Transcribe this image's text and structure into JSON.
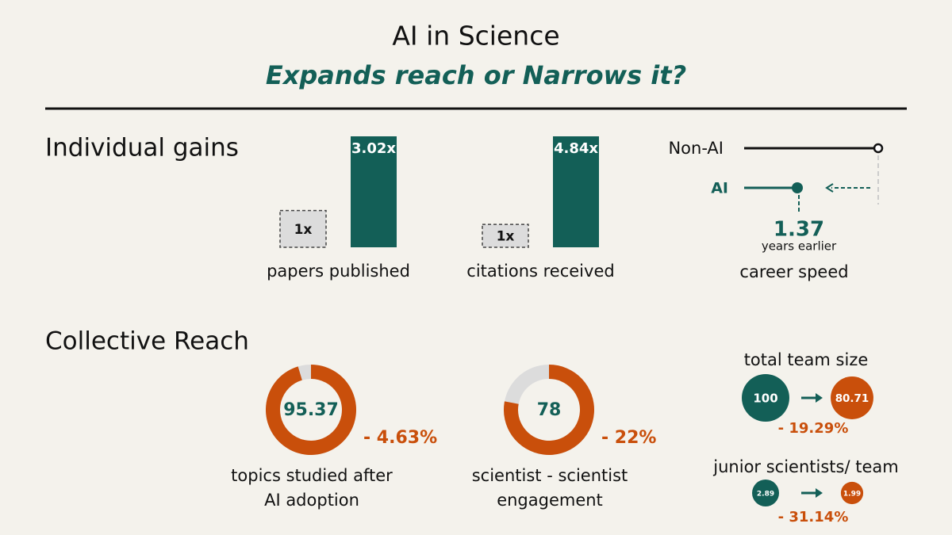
{
  "title": "AI in Science",
  "subtitle": "Expands reach or Narrows it?",
  "individual": {
    "heading": "Individual gains",
    "bars": [
      {
        "label": "papers published",
        "values": [
          1,
          3.02
        ],
        "value_labels": [
          "1x",
          "3.02x"
        ]
      },
      {
        "label": "citations received",
        "values": [
          1,
          4.84
        ],
        "value_labels": [
          "1x",
          "4.84x"
        ]
      }
    ],
    "career": {
      "label": "career speed",
      "series": [
        "Non-AI",
        "AI"
      ],
      "value": 1.37,
      "note": "years earlier"
    }
  },
  "collective": {
    "heading": "Collective Reach",
    "donuts": [
      {
        "value": 95.37,
        "change": "- 4.63%",
        "label": [
          "topics studied after",
          "AI adoption"
        ]
      },
      {
        "value": 78,
        "change": "- 22%",
        "label": [
          "scientist - scientist",
          "engagement"
        ]
      }
    ],
    "bubbles": [
      {
        "title": "total team size",
        "values": [
          100,
          80.71
        ],
        "change": "- 19.29%"
      },
      {
        "title": "junior scientists/ team",
        "values": [
          2.89,
          1.99
        ],
        "change": "- 31.14%"
      }
    ]
  },
  "colors": {
    "primary": "#135f57",
    "accent": "#c94f0b",
    "muted": "#dcdcdc"
  }
}
